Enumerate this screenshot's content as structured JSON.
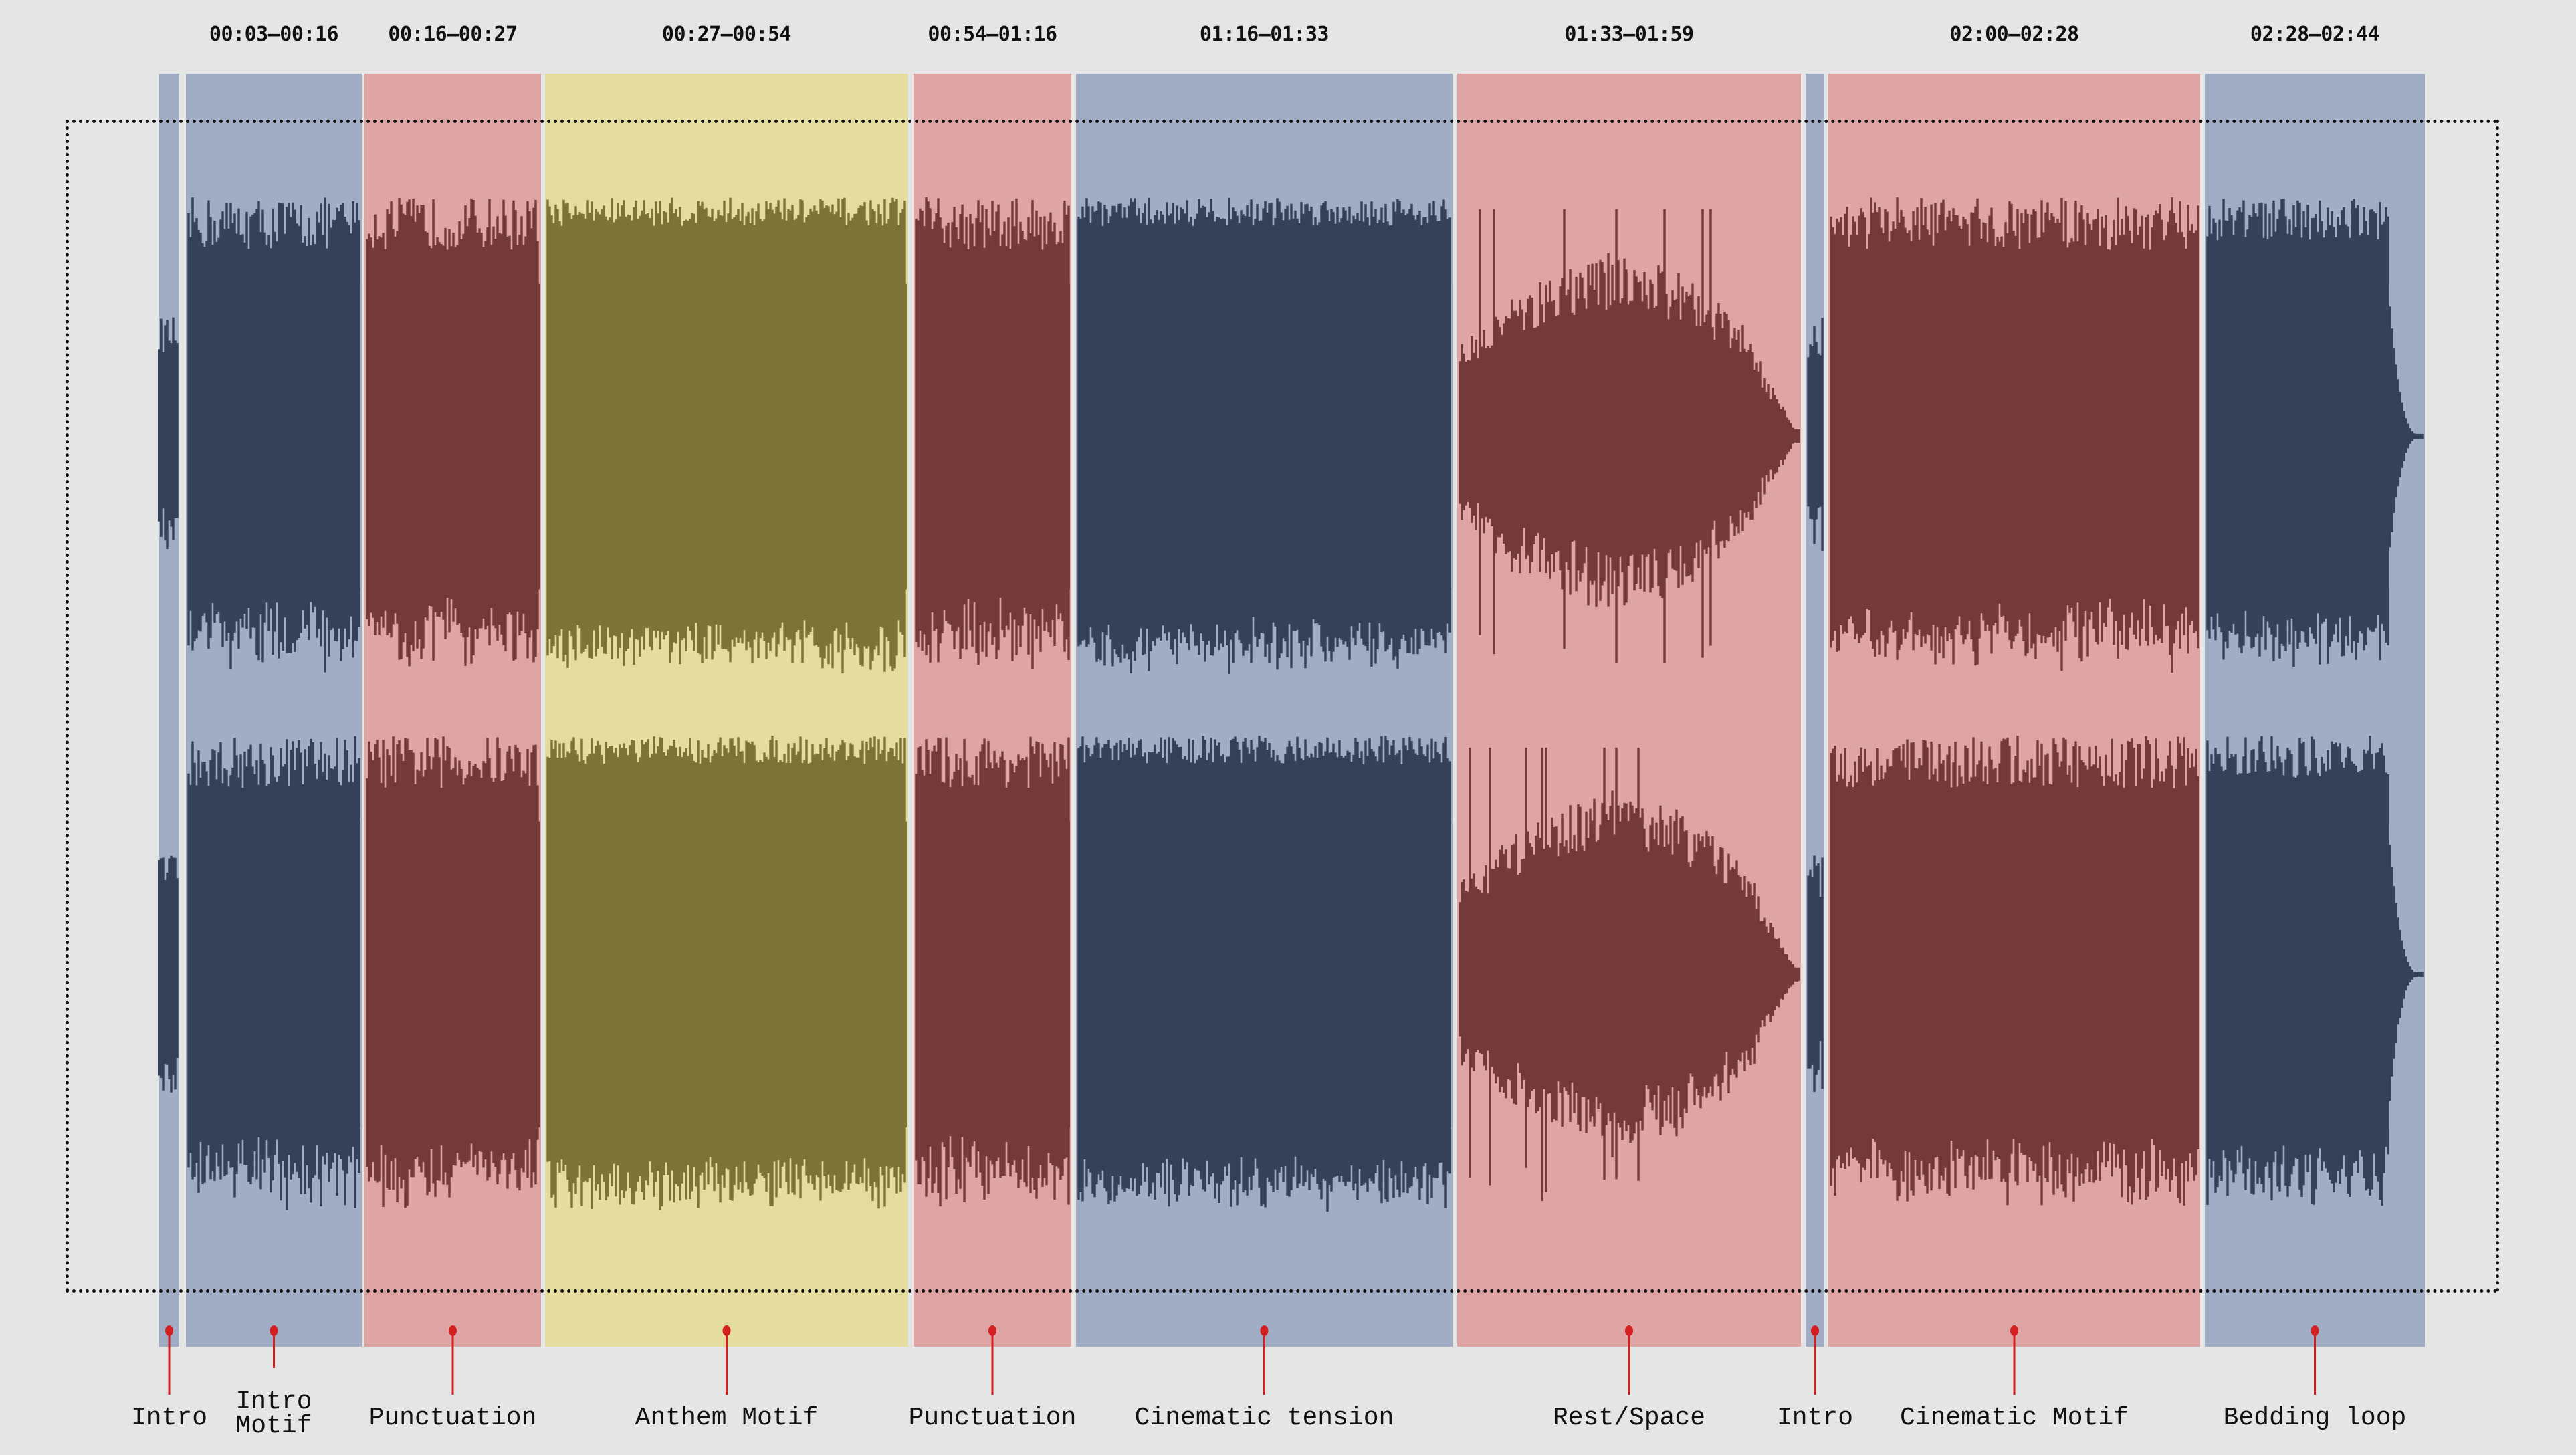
{
  "colors": {
    "background": "#e5e5e5",
    "blue_block": "#a1acc5",
    "blue_wave": "#344159",
    "pink_block": "#dfa5a5",
    "pink_wave": "#743a3a",
    "yellow_block": "#e5dda0",
    "yellow_wave": "#7c7339",
    "marker": "#d42020"
  },
  "sections": [
    {
      "label": "Intro",
      "time_range": "",
      "group": "blue"
    },
    {
      "label": "Intro\nMotif",
      "time_range": "00:03–00:16",
      "group": "blue"
    },
    {
      "label": "Punctuation",
      "time_range": "00:16–00:27",
      "group": "pink"
    },
    {
      "label": "Anthem Motif",
      "time_range": "00:27–00:54",
      "group": "yellow"
    },
    {
      "label": "Punctuation",
      "time_range": "00:54–01:16",
      "group": "pink"
    },
    {
      "label": "Cinematic tension",
      "time_range": "01:16–01:33",
      "group": "blue"
    },
    {
      "label": "Rest/Space",
      "time_range": "01:33–01:59",
      "group": "pink"
    },
    {
      "label": "Intro",
      "time_range": "",
      "group": "blue"
    },
    {
      "label": "Cinematic Motif",
      "time_range": "02:00–02:28",
      "group": "pink"
    },
    {
      "label": "Bedding loop",
      "time_range": "02:28–02:44",
      "group": "blue"
    }
  ]
}
